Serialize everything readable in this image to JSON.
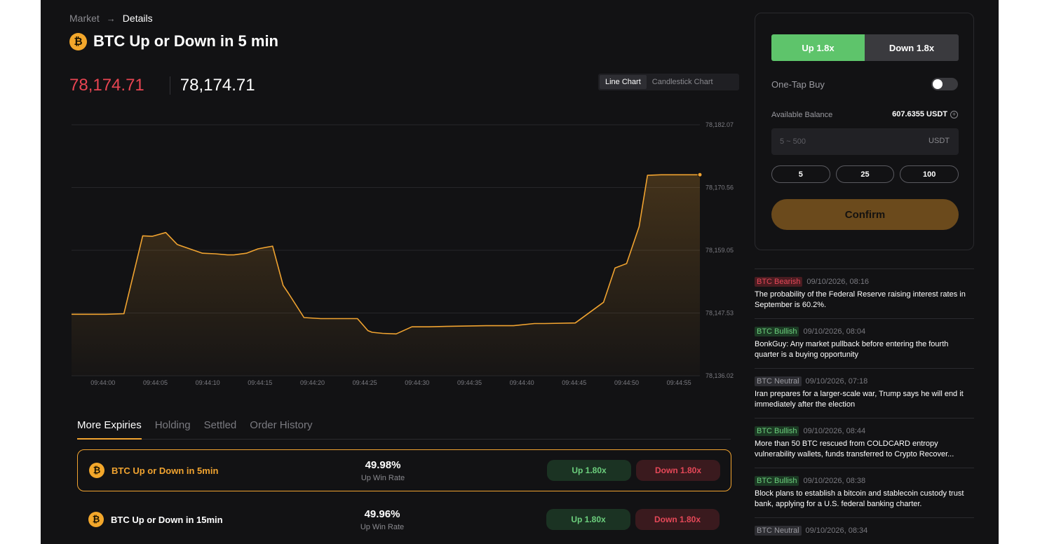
{
  "breadcrumb": {
    "market": "Market",
    "arrow": "→",
    "details": "Details"
  },
  "title": "BTC Up or Down in 5 min",
  "coin_icon": "₿",
  "prices": {
    "previous": "78,174.71",
    "current": "78,174.71"
  },
  "chart_modes": {
    "line": "Line Chart",
    "candlestick": "Candlestick Chart",
    "selected": "line"
  },
  "chart_data": {
    "type": "area",
    "x_ticks": [
      "09:44:00",
      "09:44:05",
      "09:44:10",
      "09:44:15",
      "09:44:20",
      "09:44:25",
      "09:44:30",
      "09:44:35",
      "09:44:40",
      "09:44:45",
      "09:44:50",
      "09:44:55"
    ],
    "y_ticks": [
      "78,182.07",
      "78,170.56",
      "78,159.05",
      "78,147.53",
      "78,136.02"
    ],
    "ylim": [
      78136.02,
      78182.07
    ],
    "xlim": [
      -3.0,
      57.0
    ],
    "grid": true,
    "colors": {
      "line": "#f0a330",
      "fill": "#f0a330"
    },
    "x": [
      -3.0,
      0.3,
      2.0,
      3.8,
      4.7,
      6.0,
      7.1,
      8.0,
      9.5,
      10.7,
      11.9,
      12.5,
      13.7,
      14.8,
      16.2,
      17.2,
      17.7,
      19.2,
      20.8,
      23.1,
      24.3,
      25.3,
      25.7,
      26.7,
      28.0,
      29.5,
      31.1,
      33.2,
      36.6,
      39.2,
      41.2,
      42.2,
      45.1,
      47.8,
      48.9,
      50.0,
      51.2,
      52.0,
      53.3,
      57.0
    ],
    "values": [
      78147.3,
      78147.3,
      78147.4,
      78161.7,
      78161.6,
      78162.3,
      78160.1,
      78159.5,
      78158.5,
      78158.4,
      78158.2,
      78158.2,
      78158.5,
      78159.3,
      78159.8,
      78152.6,
      78151.2,
      78146.7,
      78146.5,
      78146.5,
      78146.5,
      78144.3,
      78144.0,
      78143.8,
      78143.7,
      78145.0,
      78145.0,
      78145.1,
      78145.2,
      78145.2,
      78145.6,
      78145.6,
      78145.7,
      78149.5,
      78155.8,
      78156.6,
      78163.4,
      78172.8,
      78172.9,
      78172.9
    ]
  },
  "tabs": [
    "More Expiries",
    "Holding",
    "Settled",
    "Order History"
  ],
  "expiries": [
    {
      "name": "BTC Up or Down in 5min",
      "rate": "49.98%",
      "rate_label": "Up Win Rate",
      "up": "Up 1.80x",
      "down": "Down 1.80x"
    },
    {
      "name": "BTC Up or Down in 15min",
      "rate": "49.96%",
      "rate_label": "Up Win Rate",
      "up": "Up 1.80x",
      "down": "Down 1.80x"
    }
  ],
  "panel": {
    "up_label": "Up 1.8x",
    "down_label": "Down 1.8x",
    "one_tap_label": "One-Tap Buy",
    "one_tap_on": false,
    "balance_label": "Available Balance",
    "balance_value": "607.6355 USDT",
    "amount_placeholder": "5 ~ 500",
    "amount_unit": "USDT",
    "quick_amounts": [
      "5",
      "25",
      "100"
    ],
    "confirm_label": "Confirm"
  },
  "news": [
    {
      "tag": "BTC Bearish",
      "sentiment": "bearish",
      "time": "09/10/2026, 08:16",
      "text": "The probability of the Federal Reserve raising interest rates in September is 60.2%."
    },
    {
      "tag": "BTC Bullish",
      "sentiment": "bullish",
      "time": "09/10/2026, 08:04",
      "text": "BonkGuy: Any market pullback before entering the fourth quarter is a buying opportunity"
    },
    {
      "tag": "BTC Neutral",
      "sentiment": "neutral",
      "time": "09/10/2026, 07:18",
      "text": "Iran prepares for a larger-scale war, Trump says he will end it immediately after the election"
    },
    {
      "tag": "BTC Bullish",
      "sentiment": "bullish",
      "time": "09/10/2026, 08:44",
      "text": "More than 50 BTC rescued from COLDCARD entropy vulnerability wallets, funds transferred to Crypto Recover..."
    },
    {
      "tag": "BTC Bullish",
      "sentiment": "bullish",
      "time": "09/10/2026, 08:38",
      "text": "Block plans to establish a bitcoin and stablecoin custody trust bank, applying for a U.S. federal banking charter."
    },
    {
      "tag": "BTC Neutral",
      "sentiment": "neutral",
      "time": "09/10/2026, 08:34",
      "text": ""
    }
  ]
}
